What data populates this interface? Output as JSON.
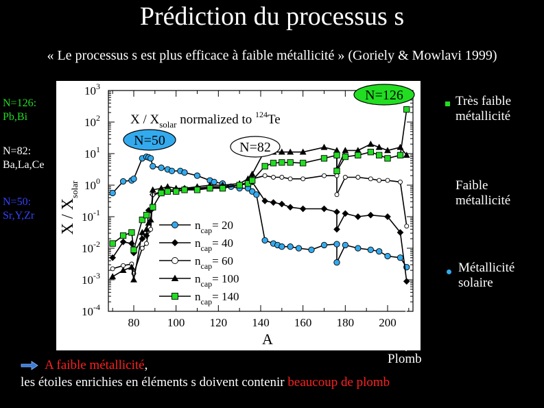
{
  "title": "Prédiction du processus s",
  "subtitle": "« Le processus s est plus efficace à faible métallicité » (Goriely & Mowlavi 1999)",
  "left_labels": [
    {
      "line1": "N=126:",
      "line2": "Pb,Bi",
      "color": "#22dd22"
    },
    {
      "line1": "N=82:",
      "line2": "Ba,La,Ce",
      "color": "#ffffff"
    },
    {
      "line1": "N=50:",
      "line2": "Sr,Y,Zr",
      "color": "#3344ff"
    }
  ],
  "right_labels": [
    {
      "line1": "Très faible",
      "line2": "métallicité",
      "bullet": "square",
      "color": "#22dd22"
    },
    {
      "line1": "Faible",
      "line2": "métallicité",
      "bullet": "none",
      "color": "#ffffff"
    },
    {
      "line1": "Métallicité",
      "line2": "solaire",
      "bullet": "circle",
      "color": "#33aaee"
    }
  ],
  "bottom": {
    "arrow_icon": "arrow-right-icon",
    "line1_red": "A faible métallicité",
    "line1_rest": ",",
    "line2_white": "les étoiles enrichies en éléments s doivent contenir ",
    "line2_red": "beaucoup de plomb"
  },
  "plomb_label": "Plomb",
  "chart_data": {
    "type": "line",
    "inner_title": "X / X",
    "inner_title_sub": "solar",
    "inner_title_rest": "normalized to",
    "inner_title_sup": "124",
    "inner_title_end": "Te",
    "xlabel": "A",
    "ylabel": "X / X",
    "ylabel_sub": "solar",
    "xlim": [
      68,
      212
    ],
    "ylog_min": -4,
    "ylog_max": 3,
    "xticks": [
      80,
      100,
      120,
      140,
      160,
      180,
      200
    ],
    "yticks_exp": [
      -4,
      -3,
      -2,
      -1,
      0,
      1,
      2,
      3
    ],
    "y_base_label": "10",
    "legend_prefix": "n",
    "legend_sub": "cap",
    "annotations": [
      {
        "text": "N=50",
        "x": 86,
        "y": 3.5,
        "fill": "#33aaee"
      },
      {
        "text": "N=82",
        "x": 138,
        "y": 1.5,
        "fill": "#ffffff"
      },
      {
        "text": "N=126",
        "x": 206,
        "y": 3.0,
        "fill": "#22dd22"
      }
    ],
    "series": [
      {
        "name": "= 20",
        "marker": "circle",
        "fill": "#33aaee",
        "x": [
          70,
          75,
          79,
          80,
          84,
          86,
          87,
          88,
          89,
          93,
          96,
          98,
          102,
          104,
          110,
          116,
          118,
          122,
          126,
          130,
          134,
          136,
          138,
          142,
          146,
          148,
          150,
          154,
          158,
          164,
          170,
          176,
          176,
          180,
          186,
          192,
          196,
          200,
          206,
          209
        ],
        "y": [
          -0.25,
          0.12,
          0.15,
          0.2,
          0.85,
          0.9,
          0.88,
          0.85,
          0.6,
          0.55,
          0.5,
          0.45,
          0.45,
          0.4,
          0.3,
          0.15,
          0.1,
          0.05,
          -0.05,
          -0.1,
          -0.1,
          -0.2,
          -0.3,
          -1.75,
          -1.85,
          -1.9,
          -1.95,
          -1.95,
          -2.0,
          -2.05,
          -1.9,
          -1.87,
          -2.45,
          -1.9,
          -2.0,
          -2.05,
          -2.1,
          -2.25,
          -2.3,
          -2.6
        ]
      },
      {
        "name": "= 40",
        "marker": "diamond",
        "fill": "#000000",
        "x": [
          70,
          75,
          79,
          80,
          84,
          86,
          87,
          88,
          89,
          93,
          96,
          100,
          104,
          110,
          116,
          122,
          130,
          134,
          136,
          142,
          146,
          150,
          154,
          160,
          170,
          176,
          176,
          180,
          186,
          192,
          200,
          206,
          209
        ],
        "y": [
          -2.3,
          -1.8,
          -1.85,
          -2.15,
          -1.7,
          -1.6,
          -0.8,
          -0.8,
          -0.3,
          -0.25,
          -0.2,
          -0.2,
          -0.15,
          -0.1,
          -0.1,
          -0.05,
          0.0,
          0.05,
          0.1,
          -0.5,
          -0.55,
          -0.6,
          -0.7,
          -0.75,
          -0.75,
          -0.85,
          -1.4,
          -0.9,
          -1.0,
          -0.95,
          -1.0,
          -1.5,
          -3.05
        ]
      },
      {
        "name": "= 60",
        "marker": "circle",
        "fill": "#ffffff",
        "x": [
          70,
          75,
          79,
          80,
          84,
          86,
          87,
          88,
          89,
          93,
          96,
          100,
          104,
          110,
          116,
          122,
          130,
          134,
          136,
          142,
          146,
          150,
          154,
          160,
          170,
          176,
          176,
          180,
          186,
          192,
          196,
          200,
          206,
          209
        ],
        "y": [
          -2.65,
          -2.55,
          -2.5,
          -2.8,
          -2.0,
          -1.85,
          -1.45,
          -1.4,
          -0.3,
          -0.2,
          -0.15,
          -0.15,
          -0.1,
          -0.1,
          -0.05,
          -0.05,
          0.0,
          0.1,
          0.2,
          0.3,
          0.25,
          0.25,
          0.2,
          0.2,
          0.3,
          0.3,
          -0.3,
          0.25,
          0.25,
          0.2,
          0.15,
          0.15,
          0.1,
          -1.3
        ]
      },
      {
        "name": "= 100",
        "marker": "triangle",
        "fill": "#000000",
        "x": [
          70,
          75,
          79,
          80,
          84,
          86,
          87,
          88,
          89,
          93,
          96,
          100,
          104,
          110,
          116,
          122,
          130,
          134,
          136,
          142,
          146,
          150,
          154,
          160,
          170,
          176,
          176,
          180,
          186,
          192,
          196,
          200,
          206,
          209
        ],
        "y": [
          -2.9,
          -2.7,
          -2.6,
          -3.0,
          -1.5,
          -1.4,
          -1.2,
          -1.1,
          -0.15,
          -0.1,
          -0.05,
          -0.1,
          -0.1,
          -0.05,
          0.0,
          0.0,
          0.05,
          0.2,
          0.35,
          1.1,
          1.05,
          1.05,
          1.05,
          1.05,
          1.2,
          1.1,
          0.5,
          1.1,
          1.1,
          1.3,
          1.2,
          1.1,
          1.2,
          0.95
        ]
      },
      {
        "name": "= 140",
        "marker": "square",
        "fill": "#22dd22",
        "x": [
          70,
          75,
          79,
          80,
          84,
          86,
          89,
          93,
          96,
          100,
          104,
          110,
          116,
          122,
          130,
          134,
          136,
          142,
          146,
          150,
          154,
          160,
          170,
          176,
          176,
          180,
          186,
          192,
          196,
          200,
          206,
          209
        ],
        "y": [
          -1.85,
          -1.6,
          -1.5,
          -2.05,
          -1.1,
          -0.95,
          -0.7,
          -0.25,
          -0.2,
          -0.2,
          -0.15,
          -0.15,
          -0.1,
          -0.1,
          0.0,
          0.05,
          0.15,
          0.6,
          0.7,
          0.72,
          0.72,
          0.7,
          0.85,
          0.95,
          0.45,
          0.9,
          0.95,
          1.05,
          0.95,
          0.85,
          0.95,
          2.4
        ]
      }
    ]
  }
}
